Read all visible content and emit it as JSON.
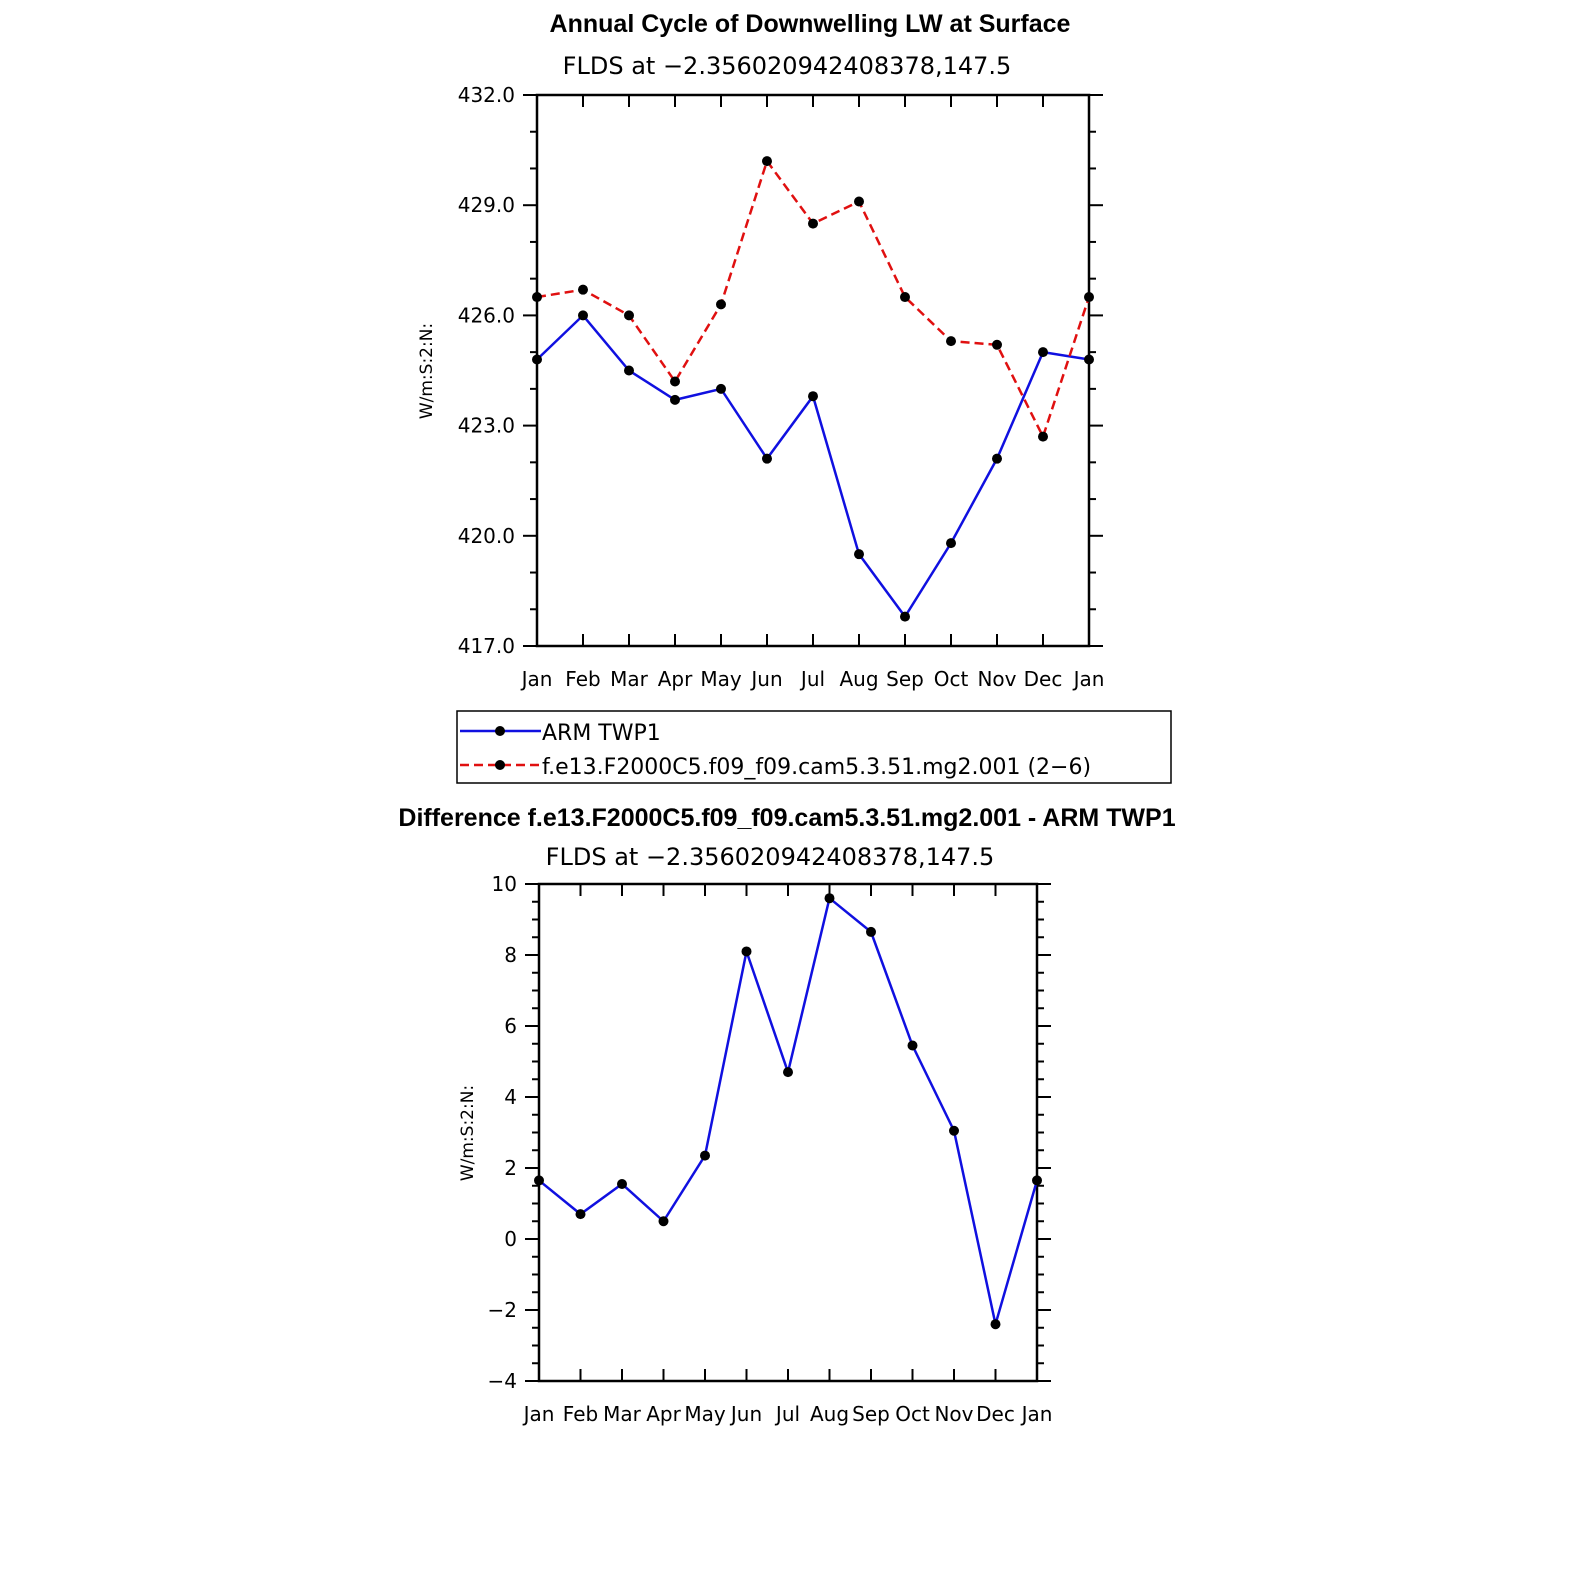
{
  "chart_data": [
    {
      "type": "line",
      "title": "Annual Cycle of Downwelling LW at Surface",
      "subtitle": "FLDS at −2.356020942408378,147.5",
      "ylabel": "W/m:S:2:N:",
      "xlabel": "",
      "categories": [
        "Jan",
        "Feb",
        "Mar",
        "Apr",
        "May",
        "Jun",
        "Jul",
        "Aug",
        "Sep",
        "Oct",
        "Nov",
        "Dec",
        "Jan"
      ],
      "ylim": [
        417.0,
        432.0
      ],
      "yticks": [
        "417.0",
        "420.0",
        "423.0",
        "426.0",
        "429.0",
        "432.0"
      ],
      "series": [
        {
          "name": "ARM TWP1",
          "color": "#1010e0",
          "dash": "solid",
          "values": [
            424.8,
            426.0,
            424.5,
            423.7,
            424.0,
            422.1,
            423.8,
            419.5,
            417.8,
            419.8,
            422.1,
            425.0,
            424.8
          ]
        },
        {
          "name": "f.e13.F2000C5.f09_f09.cam5.3.51.mg2.001 (2−6)",
          "color": "#e01010",
          "dash": "dashed",
          "values": [
            426.5,
            426.7,
            426.0,
            424.2,
            426.3,
            430.2,
            428.5,
            429.1,
            426.5,
            425.3,
            425.2,
            422.7,
            426.5
          ]
        }
      ]
    },
    {
      "type": "line",
      "title": "Difference f.e13.F2000C5.f09_f09.cam5.3.51.mg2.001 - ARM TWP1",
      "subtitle": "FLDS at −2.356020942408378,147.5",
      "ylabel": "W/m:S:2:N:",
      "xlabel": "",
      "categories": [
        "Jan",
        "Feb",
        "Mar",
        "Apr",
        "May",
        "Jun",
        "Jul",
        "Aug",
        "Sep",
        "Oct",
        "Nov",
        "Dec",
        "Jan"
      ],
      "ylim": [
        -4,
        10
      ],
      "yticks": [
        "−4",
        "−2",
        "0",
        "2",
        "4",
        "6",
        "8",
        "10"
      ],
      "series": [
        {
          "name": "Difference",
          "color": "#1010e0",
          "dash": "solid",
          "values": [
            1.65,
            0.7,
            1.55,
            0.5,
            2.35,
            8.1,
            4.7,
            9.6,
            8.65,
            5.45,
            3.05,
            -2.4,
            1.65
          ]
        }
      ]
    }
  ]
}
